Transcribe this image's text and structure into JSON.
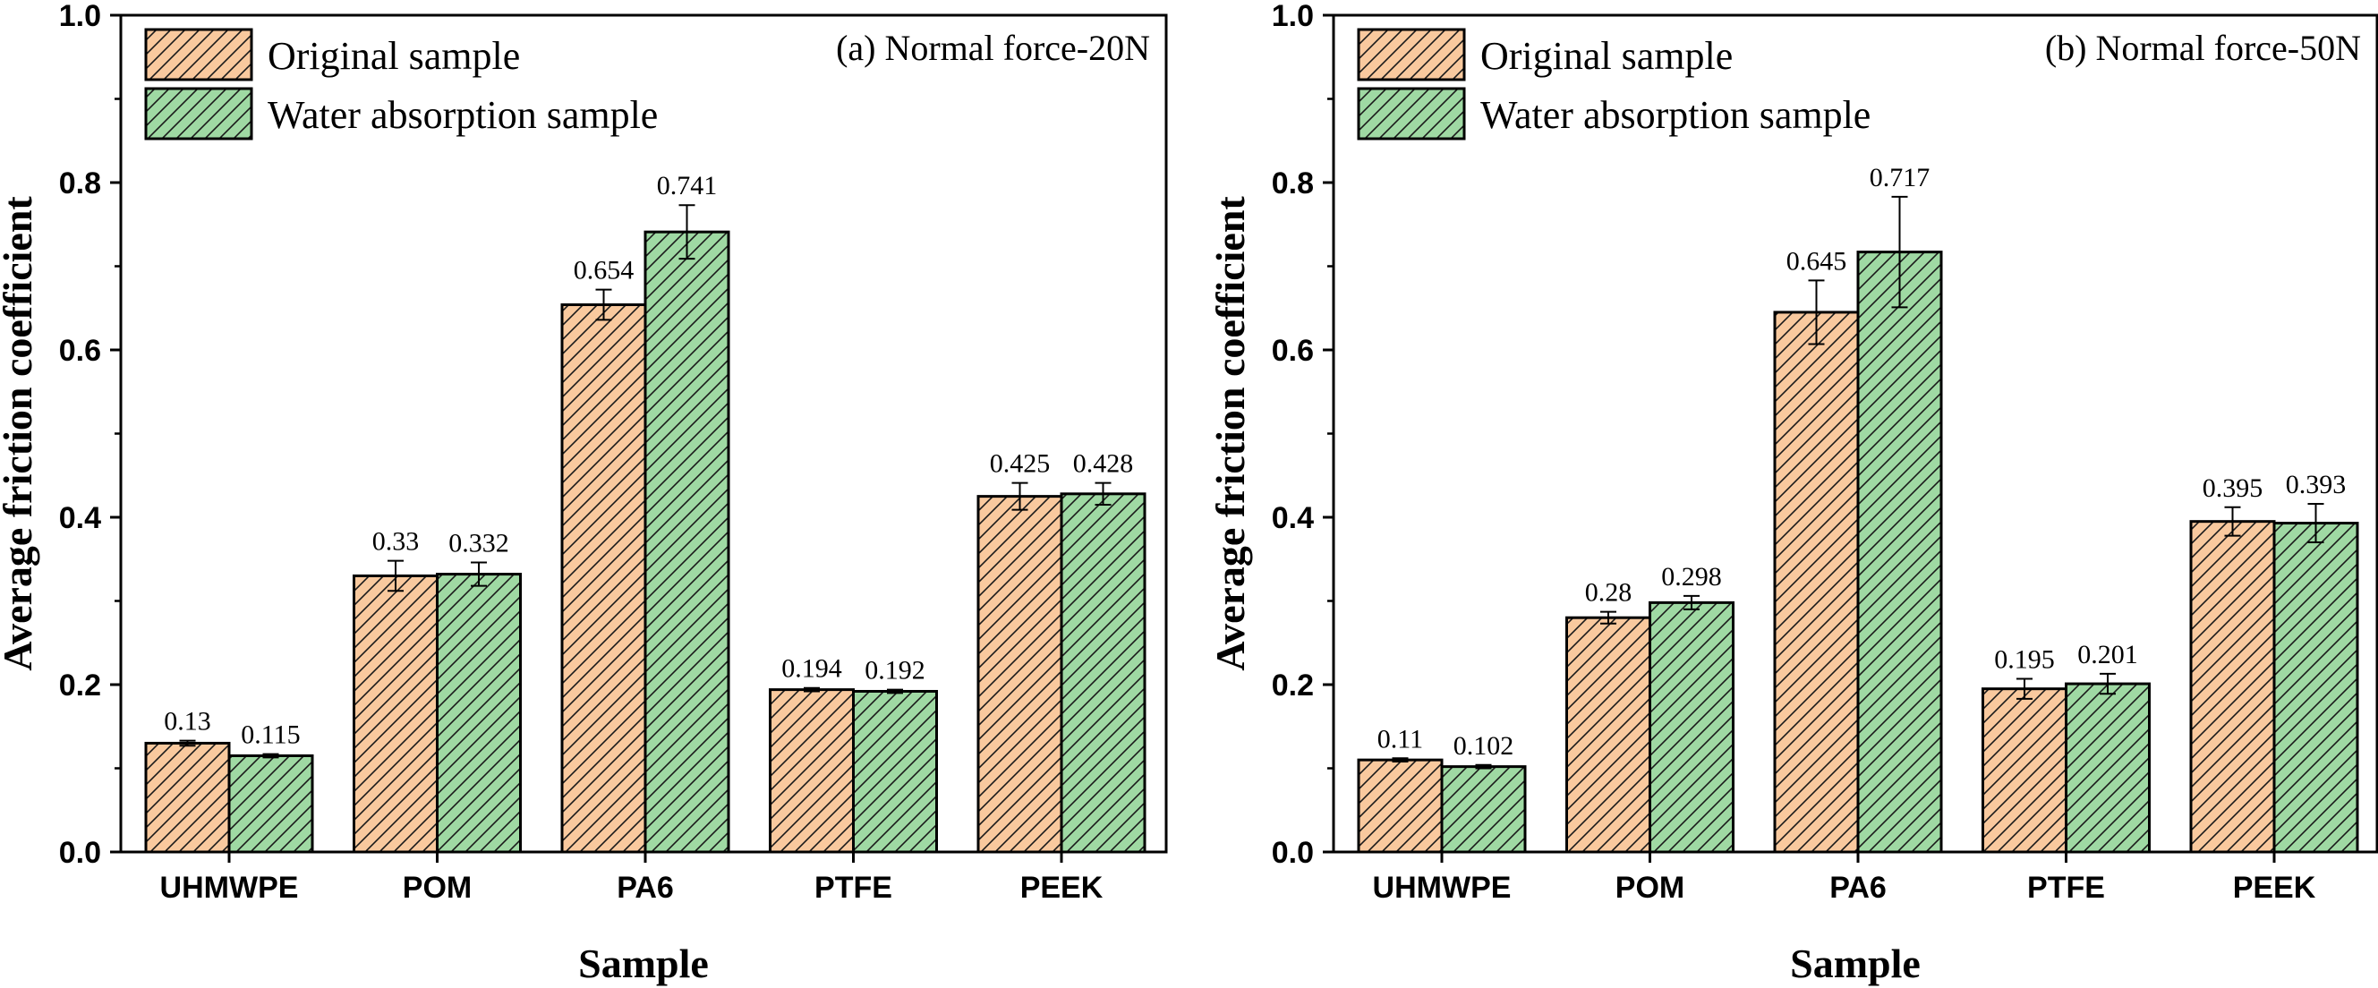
{
  "chart_data": [
    {
      "type": "bar",
      "title": "(a) Normal force-20N",
      "xlabel": "Sample",
      "ylabel": "Average friction coefficient",
      "ylim": [
        0,
        1.0
      ],
      "yticks": [
        "0.0",
        "0.2",
        "0.4",
        "0.6",
        "0.8",
        "1.0"
      ],
      "categories": [
        "UHMWPE",
        "POM",
        "PA6",
        "PTFE",
        "PEEK"
      ],
      "legend_position": "top-left",
      "series": [
        {
          "name": "Original sample",
          "color": "#f9c99e",
          "values": [
            0.13,
            0.33,
            0.654,
            0.194,
            0.425
          ],
          "labels": [
            "0.13",
            "0.33",
            "0.654",
            "0.194",
            "0.425"
          ],
          "errors": [
            0.003,
            0.018,
            0.018,
            0.002,
            0.016
          ]
        },
        {
          "name": "Water absorption sample",
          "color": "#9fd9a3",
          "values": [
            0.115,
            0.332,
            0.741,
            0.192,
            0.428
          ],
          "labels": [
            "0.115",
            "0.332",
            "0.741",
            "0.192",
            "0.428"
          ],
          "errors": [
            0.002,
            0.014,
            0.032,
            0.002,
            0.013
          ]
        }
      ]
    },
    {
      "type": "bar",
      "title": "(b) Normal force-50N",
      "xlabel": "Sample",
      "ylabel": "Average friction coefficient",
      "ylim": [
        0,
        1.0
      ],
      "yticks": [
        "0.0",
        "0.2",
        "0.4",
        "0.6",
        "0.8",
        "1.0"
      ],
      "categories": [
        "UHMWPE",
        "POM",
        "PA6",
        "PTFE",
        "PEEK"
      ],
      "legend_position": "top-left",
      "series": [
        {
          "name": "Original sample",
          "color": "#f9c99e",
          "values": [
            0.11,
            0.28,
            0.645,
            0.195,
            0.395
          ],
          "labels": [
            "0.11",
            "0.28",
            "0.645",
            "0.195",
            "0.395"
          ],
          "errors": [
            0.002,
            0.007,
            0.038,
            0.012,
            0.017
          ]
        },
        {
          "name": "Water absorption sample",
          "color": "#9fd9a3",
          "values": [
            0.102,
            0.298,
            0.717,
            0.201,
            0.393
          ],
          "labels": [
            "0.102",
            "0.298",
            "0.717",
            "0.201",
            "0.393"
          ],
          "errors": [
            0.002,
            0.008,
            0.066,
            0.012,
            0.023
          ]
        }
      ]
    }
  ]
}
